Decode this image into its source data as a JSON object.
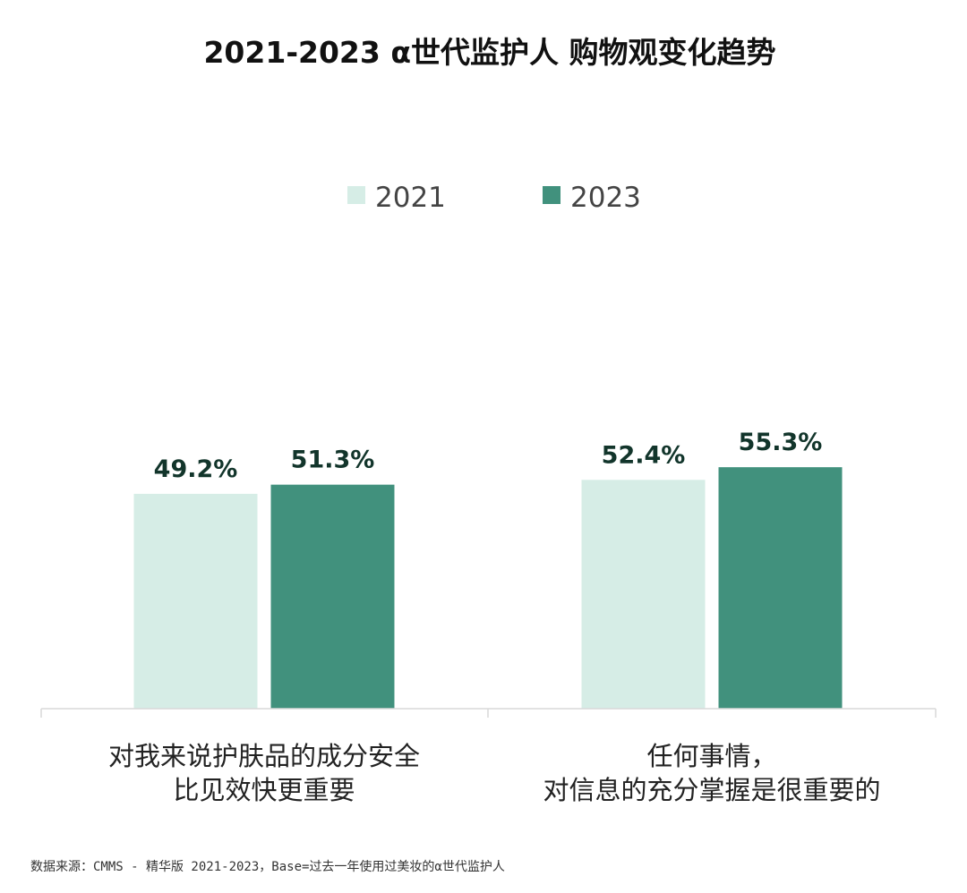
{
  "chart_data": {
    "type": "bar",
    "title": "2021-2023 α世代监护人 购物观变化趋势",
    "categories": [
      [
        "对我来说护肤品的成分安全",
        "比见效快更重要"
      ],
      [
        "任何事情，",
        "对信息的充分掌握是很重要的"
      ]
    ],
    "series": [
      {
        "name": "2021",
        "values": [
          49.2,
          52.4
        ],
        "labels": [
          "49.2%",
          "52.4%"
        ],
        "color": "#d6ede6"
      },
      {
        "name": "2023",
        "values": [
          51.3,
          55.3
        ],
        "labels": [
          "51.3%",
          "55.3%"
        ],
        "color": "#41917d"
      }
    ],
    "ylim": [
      0,
      60
    ],
    "grid": false,
    "legend_position": "top-center",
    "source": "数据来源：CMMS - 精华版 2021-2023，Base=过去一年使用过美妆的α世代监护人"
  }
}
